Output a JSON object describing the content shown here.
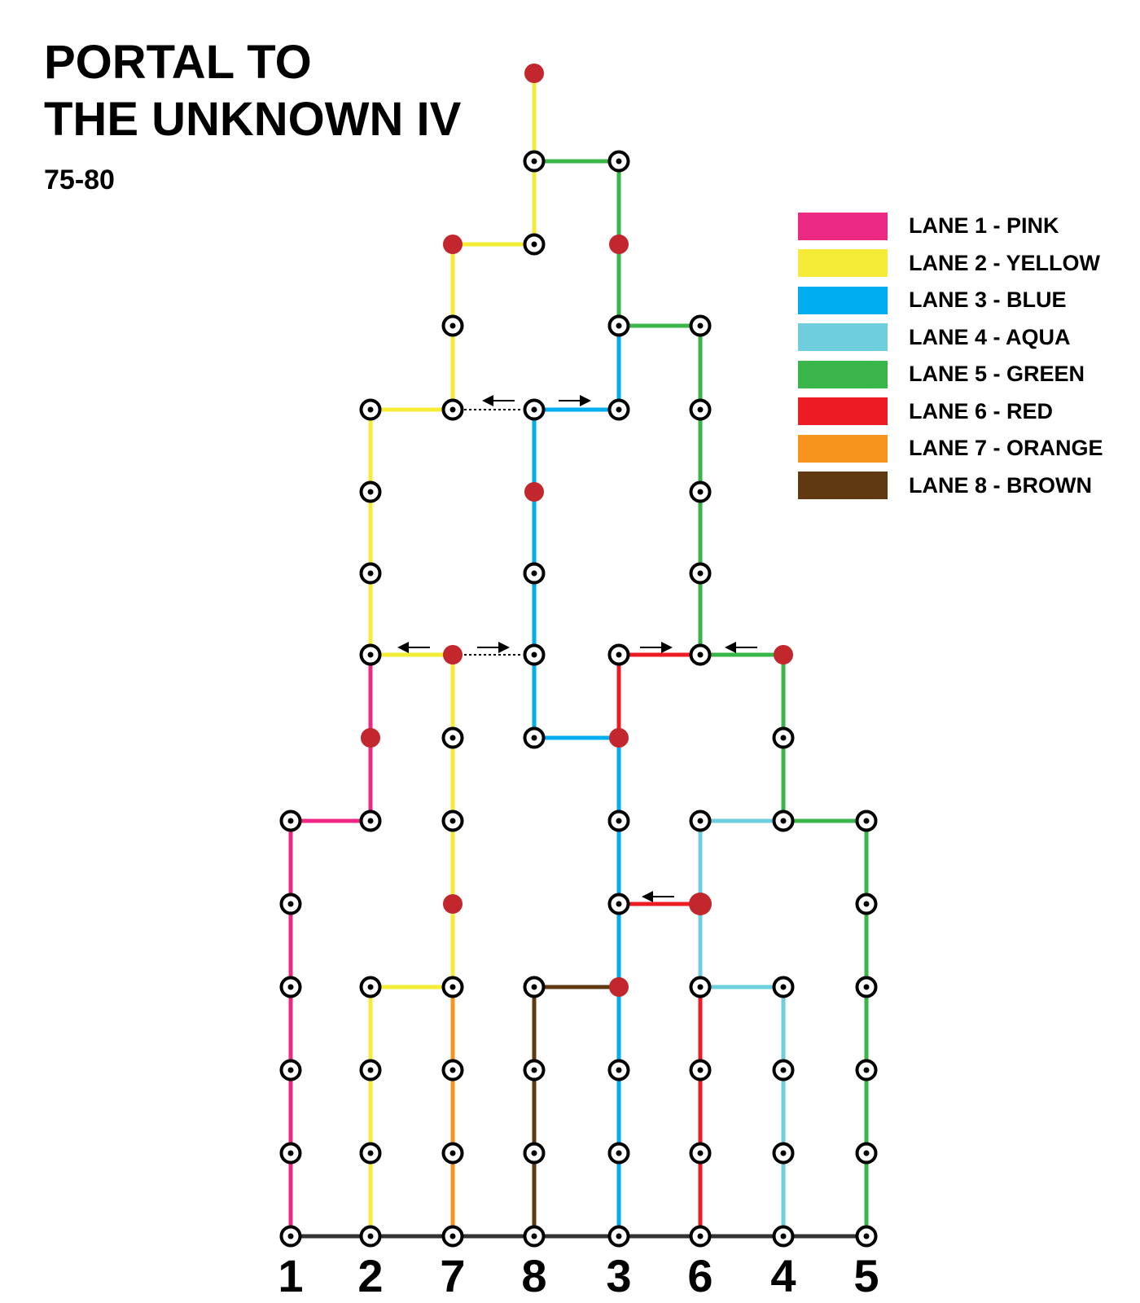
{
  "title_line1": "PORTAL TO",
  "title_line2": "THE UNKNOWN IV",
  "subtitle": "75-80",
  "legend": [
    {
      "label": "LANE 1 - PINK",
      "color": "#ec2a83"
    },
    {
      "label": "LANE 2 - YELLOW",
      "color": "#f5ec37"
    },
    {
      "label": "LANE 3 - BLUE",
      "color": "#00aeef"
    },
    {
      "label": "LANE 4 - AQUA",
      "color": "#6ecedd"
    },
    {
      "label": "LANE 5 - GREEN",
      "color": "#39b54a"
    },
    {
      "label": "LANE 6 - RED",
      "color": "#ed1c24"
    },
    {
      "label": "LANE 7 - ORANGE",
      "color": "#f7941d"
    },
    {
      "label": "LANE 8 - BROWN",
      "color": "#603913"
    }
  ],
  "lanes": [
    "1",
    "2",
    "7",
    "8",
    "3",
    "6",
    "4",
    "5"
  ],
  "colors": {
    "pink": "#ec2a83",
    "yellow": "#f5ec37",
    "blue": "#00aeef",
    "aqua": "#6ecedd",
    "green": "#39b54a",
    "red": "#ed1c24",
    "orange": "#f7941d",
    "brown": "#603913",
    "base": "#333333",
    "red_node": "#c1272d"
  }
}
